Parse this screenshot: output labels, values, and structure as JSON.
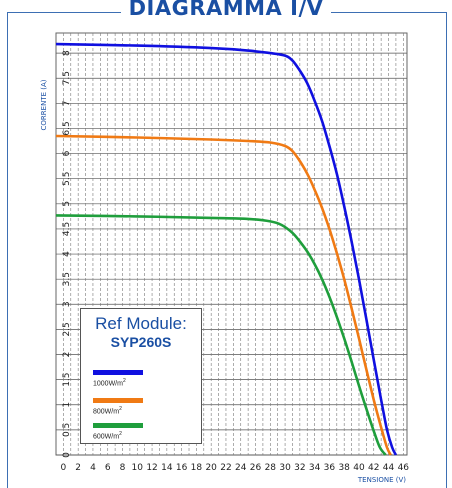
{
  "page": {
    "title": "DIAGRAMMA I/V"
  },
  "legend": {
    "title": "Ref Module:",
    "model": "SYP260S",
    "items": [
      {
        "label": "1000W/m",
        "sup": "2",
        "color": "#1010e0"
      },
      {
        "label": "800W/m",
        "sup": "2",
        "color": "#f07a14"
      },
      {
        "label": "600W/m",
        "sup": "2",
        "color": "#1f9e3c"
      }
    ]
  },
  "chart_data": {
    "type": "line",
    "title": "DIAGRAMMA I/V",
    "xlabel": "TENSIONE (V)",
    "ylabel": "CORRENTE (A)",
    "xlim": [
      -1,
      46.5
    ],
    "ylim": [
      0,
      8.4
    ],
    "xticks": [
      0,
      2,
      4,
      6,
      8,
      10,
      12,
      14,
      16,
      18,
      20,
      22,
      24,
      26,
      28,
      30,
      32,
      34,
      36,
      38,
      40,
      42,
      44,
      46
    ],
    "yticks": [
      0,
      0.5,
      1,
      1.5,
      2,
      2.5,
      3,
      3.5,
      4,
      4.5,
      5,
      5.5,
      6,
      6.5,
      7,
      7.5,
      8
    ],
    "grid": true,
    "series": [
      {
        "name": "1000W/m2",
        "color": "#1010e0",
        "x": [
          -1,
          10,
          20,
          25,
          28,
          30,
          31,
          32,
          33,
          34,
          35,
          36,
          37,
          38,
          39,
          40,
          41,
          42,
          43,
          43.8,
          44.5,
          45
        ],
        "y": [
          8.18,
          8.15,
          8.1,
          8.05,
          8.0,
          7.95,
          7.85,
          7.65,
          7.4,
          7.05,
          6.65,
          6.15,
          5.6,
          4.95,
          4.25,
          3.5,
          2.7,
          1.9,
          1.1,
          0.5,
          0.15,
          0
        ]
      },
      {
        "name": "800W/m2",
        "color": "#f07a14",
        "x": [
          -1,
          10,
          20,
          25,
          28,
          30,
          31,
          32,
          33,
          34,
          35,
          36,
          37,
          38,
          39,
          40,
          41,
          42,
          43,
          43.8,
          44.3
        ],
        "y": [
          6.35,
          6.32,
          6.28,
          6.25,
          6.22,
          6.15,
          6.05,
          5.85,
          5.6,
          5.28,
          4.92,
          4.5,
          4.02,
          3.5,
          2.92,
          2.32,
          1.7,
          1.1,
          0.55,
          0.15,
          0
        ]
      },
      {
        "name": "600W/m2",
        "color": "#1f9e3c",
        "x": [
          -1,
          10,
          20,
          25,
          28,
          29.5,
          31,
          32,
          33,
          34,
          35,
          36,
          37,
          38,
          39,
          40,
          41,
          42,
          42.8,
          43.6
        ],
        "y": [
          4.77,
          4.75,
          4.72,
          4.7,
          4.65,
          4.58,
          4.42,
          4.25,
          4.05,
          3.8,
          3.5,
          3.15,
          2.75,
          2.32,
          1.86,
          1.38,
          0.92,
          0.48,
          0.16,
          0
        ]
      }
    ]
  }
}
